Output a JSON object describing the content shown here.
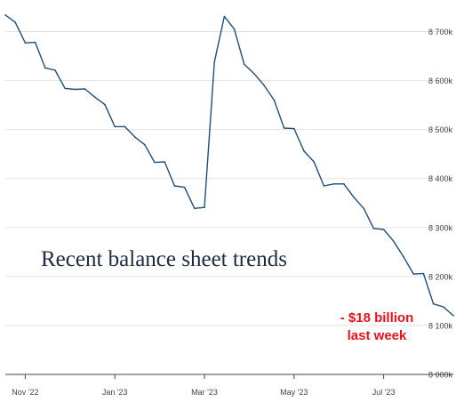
{
  "chart_data": {
    "type": "line",
    "title": "Recent balance sheet trends",
    "xlabel": "",
    "ylabel": "",
    "ylim": [
      8000,
      8750
    ],
    "y_ticks": [
      8000,
      8100,
      8200,
      8300,
      8400,
      8500,
      8600,
      8700
    ],
    "y_tick_labels": [
      "8 000k",
      "8 100k",
      "8 200k",
      "8 300k",
      "8 400k",
      "8 500k",
      "8 600k",
      "8 700k"
    ],
    "x_ticks": [
      {
        "label": "Nov '22",
        "index": 2
      },
      {
        "label": "Jan '23",
        "index": 11
      },
      {
        "label": "Mar '23",
        "index": 20
      },
      {
        "label": "May '23",
        "index": 29
      },
      {
        "label": "Jul '23",
        "index": 38
      }
    ],
    "grid": true,
    "line_color": "#1f4e79",
    "annotation_color": "#e8111b",
    "annotation_lines": [
      "- $18 billion",
      "last week"
    ],
    "series": [
      {
        "values": [
          8734,
          8719,
          8677,
          8678,
          8626,
          8621,
          8584,
          8582,
          8583,
          8566,
          8551,
          8506,
          8506,
          8485,
          8469,
          8433,
          8434,
          8385,
          8382,
          8339,
          8341,
          8638,
          8731,
          8705,
          8633,
          8614,
          8590,
          8560,
          8503,
          8502,
          8456,
          8434,
          8385,
          8389,
          8389,
          8362,
          8339,
          8298,
          8296,
          8272,
          8240,
          8205,
          8206,
          8144,
          8138,
          8120
        ]
      }
    ]
  }
}
